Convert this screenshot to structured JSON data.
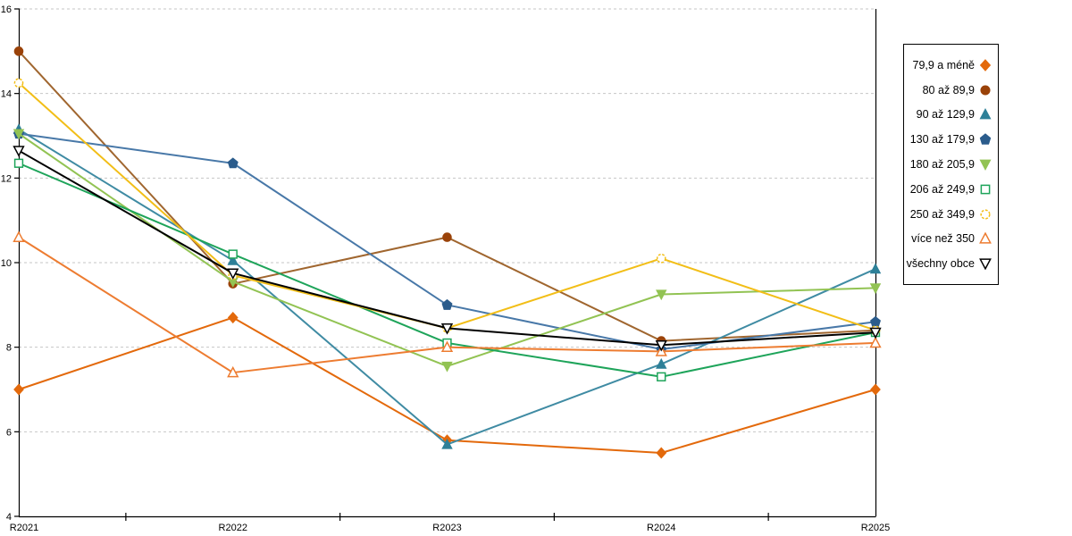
{
  "chart_data": {
    "type": "line",
    "title": "",
    "xlabel": "",
    "ylabel": "",
    "categories": [
      "R2021",
      "R2022",
      "R2023",
      "R2024",
      "R2025"
    ],
    "ylim": [
      4,
      16
    ],
    "ytick_labels": [
      "4",
      "6",
      "8",
      "10",
      "12",
      "14",
      "16"
    ],
    "grid": "horizontal-dashed",
    "gridline_color": "#c6c6c6",
    "axis_color": "#000000",
    "legend_position": "right-outside-box",
    "series": [
      {
        "name": "79,9 a méně",
        "marker": "diamond",
        "filled": true,
        "color": "#e3690b",
        "values": [
          7.0,
          8.7,
          5.8,
          5.5,
          7.0
        ]
      },
      {
        "name": "80 až 89,9",
        "marker": "circle",
        "filled": true,
        "color": "#9a4209",
        "line_color": "#a0662f",
        "values": [
          15.0,
          9.5,
          10.6,
          8.15,
          8.4
        ]
      },
      {
        "name": "90 až 129,9",
        "marker": "triangle-up",
        "filled": true,
        "color": "#2e8098",
        "line_color": "#3f8ba3",
        "values": [
          13.15,
          10.05,
          5.7,
          7.6,
          9.85
        ]
      },
      {
        "name": "130 až 179,9",
        "marker": "pentagon",
        "filled": true,
        "color": "#2b5c8c",
        "line_color": "#4878a8",
        "values": [
          13.05,
          12.35,
          9.0,
          7.95,
          8.6
        ]
      },
      {
        "name": "180 až 205,9",
        "marker": "triangle-down",
        "filled": true,
        "color": "#92c353",
        "values": [
          13.05,
          9.55,
          7.55,
          9.25,
          9.4
        ]
      },
      {
        "name": "206 až 249,9",
        "marker": "square",
        "filled": false,
        "color": "#1ea45a",
        "values": [
          12.35,
          10.2,
          8.1,
          7.3,
          8.35
        ]
      },
      {
        "name": "250 až 349,9",
        "marker": "circle-dashed",
        "filled": false,
        "color": "#f2be17",
        "values": [
          14.25,
          9.7,
          8.45,
          10.1,
          8.4
        ]
      },
      {
        "name": "více než 350",
        "marker": "triangle-up",
        "filled": false,
        "color": "#ed7c31",
        "values": [
          10.6,
          7.4,
          8.0,
          7.9,
          8.1
        ]
      },
      {
        "name": "všechny obce",
        "marker": "triangle-down",
        "filled": false,
        "color": "#000000",
        "values": [
          12.65,
          9.75,
          8.45,
          8.05,
          8.35
        ]
      }
    ]
  }
}
